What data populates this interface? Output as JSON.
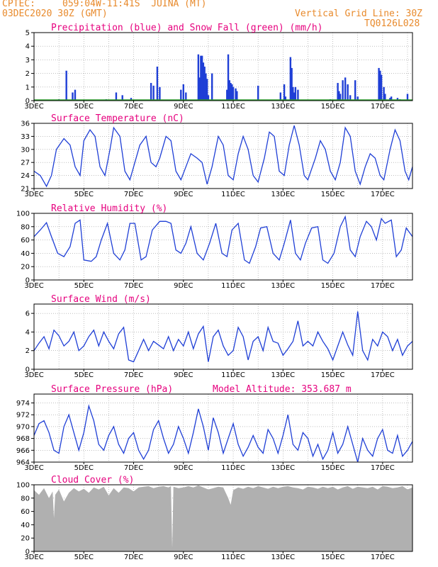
{
  "header": {
    "source": "CPTEC:",
    "location": "059:04W-11:41S  JUINA (MT)",
    "run": "03DEC2020 30Z (GMT)",
    "grid_note": "Vertical Grid Line: 30Z",
    "product_code": "TQ0126L028"
  },
  "colors": {
    "header": "#e88a2c",
    "title": "#e6007e",
    "series": "#1f3fd6",
    "snow": "#2ca02c",
    "cloud": "#b0b0b0"
  },
  "chart_data": [
    {
      "id": "precip",
      "type": "bar",
      "title": "Precipitation (blue) and Snow Fall (green) (mm/h)",
      "ylim": [
        0,
        5
      ],
      "yticks": [
        "0",
        "1",
        "2",
        "3",
        "4",
        "5"
      ],
      "x_labels": [
        "3DEC",
        "5DEC",
        "7DEC",
        "9DEC",
        "11DEC",
        "13DEC",
        "15DEC",
        "17DEC"
      ],
      "grid": true,
      "xrange_days": [
        3,
        18.2
      ],
      "bars": [
        [
          4.0,
          0.1
        ],
        [
          4.3,
          2.2
        ],
        [
          4.55,
          0.6
        ],
        [
          4.65,
          0.8
        ],
        [
          5.9,
          0.1
        ],
        [
          6.3,
          0.6
        ],
        [
          6.55,
          0.4
        ],
        [
          6.9,
          0.2
        ],
        [
          7.7,
          1.3
        ],
        [
          7.8,
          1.1
        ],
        [
          7.95,
          2.5
        ],
        [
          8.05,
          1.0
        ],
        [
          8.9,
          0.8
        ],
        [
          9.0,
          1.2
        ],
        [
          9.1,
          0.6
        ],
        [
          9.6,
          3.4
        ],
        [
          9.65,
          1.7
        ],
        [
          9.7,
          3.3
        ],
        [
          9.75,
          3.3
        ],
        [
          9.8,
          2.8
        ],
        [
          9.85,
          2.5
        ],
        [
          9.9,
          2.0
        ],
        [
          9.95,
          1.6
        ],
        [
          10.0,
          0.4
        ],
        [
          10.15,
          2.0
        ],
        [
          10.75,
          0.8
        ],
        [
          10.8,
          3.4
        ],
        [
          10.85,
          1.5
        ],
        [
          10.9,
          1.3
        ],
        [
          10.95,
          1.2
        ],
        [
          11.0,
          1.0
        ],
        [
          11.1,
          0.9
        ],
        [
          11.15,
          0.7
        ],
        [
          12.0,
          1.1
        ],
        [
          12.9,
          0.6
        ],
        [
          13.05,
          1.2
        ],
        [
          13.1,
          0.3
        ],
        [
          13.3,
          3.2
        ],
        [
          13.35,
          2.4
        ],
        [
          13.4,
          1.0
        ],
        [
          13.45,
          0.6
        ],
        [
          13.5,
          1.0
        ],
        [
          13.6,
          0.8
        ],
        [
          14.9,
          0.1
        ],
        [
          15.2,
          1.3
        ],
        [
          15.25,
          0.7
        ],
        [
          15.3,
          0.5
        ],
        [
          15.4,
          1.5
        ],
        [
          15.5,
          1.7
        ],
        [
          15.6,
          1.2
        ],
        [
          15.7,
          0.4
        ],
        [
          15.9,
          1.5
        ],
        [
          16.0,
          0.3
        ],
        [
          16.85,
          2.4
        ],
        [
          16.9,
          2.2
        ],
        [
          16.95,
          1.9
        ],
        [
          17.05,
          1.0
        ],
        [
          17.1,
          0.5
        ],
        [
          17.3,
          0.2
        ],
        [
          17.35,
          0.3
        ],
        [
          17.6,
          0.2
        ],
        [
          17.7,
          0.1
        ],
        [
          18.0,
          0.5
        ]
      ]
    },
    {
      "id": "temperature",
      "type": "line",
      "title": "Surface Temperature (nC)",
      "ylim": [
        21,
        36
      ],
      "yticks": [
        "21",
        "24",
        "27",
        "30",
        "33",
        "36"
      ],
      "x_labels": [
        "3DEC",
        "5DEC",
        "7DEC",
        "9DEC",
        "11DEC",
        "13DEC",
        "15DEC",
        "17DEC"
      ],
      "grid": true,
      "x": [
        3.0,
        3.25,
        3.5,
        3.7,
        3.9,
        4.2,
        4.45,
        4.65,
        4.85,
        5.0,
        5.25,
        5.45,
        5.65,
        5.85,
        6.05,
        6.2,
        6.45,
        6.65,
        6.85,
        7.05,
        7.25,
        7.5,
        7.7,
        7.9,
        8.05,
        8.3,
        8.5,
        8.7,
        8.9,
        9.1,
        9.3,
        9.55,
        9.75,
        9.95,
        10.15,
        10.4,
        10.6,
        10.8,
        11.0,
        11.2,
        11.4,
        11.6,
        11.8,
        12.0,
        12.25,
        12.45,
        12.65,
        12.85,
        13.05,
        13.25,
        13.45,
        13.65,
        13.85,
        14.0,
        14.3,
        14.5,
        14.7,
        14.9,
        15.1,
        15.3,
        15.5,
        15.7,
        15.9,
        16.1,
        16.3,
        16.5,
        16.7,
        16.9,
        17.05,
        17.3,
        17.5,
        17.7,
        17.9,
        18.05,
        18.2
      ],
      "y": [
        25,
        24,
        21.5,
        24,
        30,
        32.5,
        31,
        26,
        24,
        32,
        34.5,
        33,
        26,
        24,
        30,
        35,
        33,
        25,
        23,
        27,
        31,
        33,
        27,
        26,
        28,
        33,
        32,
        25,
        23,
        26,
        29,
        28,
        27,
        22,
        26,
        33,
        31,
        24,
        23,
        29,
        33,
        30,
        24,
        22.5,
        28,
        34,
        33,
        25,
        24,
        31,
        35.5,
        31,
        24,
        23,
        28,
        32,
        30,
        25,
        23,
        27,
        35,
        33,
        25,
        22,
        26,
        29,
        28,
        24,
        23,
        30,
        34.5,
        32,
        25,
        23,
        26
      ]
    },
    {
      "id": "humidity",
      "type": "line",
      "title": "Relative Humidity (%)",
      "ylim": [
        0,
        100
      ],
      "yticks": [
        "0",
        "20",
        "40",
        "60",
        "80",
        "100"
      ],
      "x_labels": [
        "3DEC",
        "5DEC",
        "7DEC",
        "9DEC",
        "11DEC",
        "13DEC",
        "15DEC",
        "17DEC"
      ],
      "grid": true,
      "x": [
        3.0,
        3.25,
        3.5,
        3.7,
        3.95,
        4.2,
        4.45,
        4.65,
        4.85,
        5.0,
        5.3,
        5.5,
        5.7,
        5.95,
        6.2,
        6.45,
        6.65,
        6.85,
        7.05,
        7.3,
        7.5,
        7.75,
        8.05,
        8.3,
        8.5,
        8.7,
        8.9,
        9.1,
        9.3,
        9.55,
        9.8,
        10.05,
        10.3,
        10.55,
        10.75,
        10.95,
        11.2,
        11.45,
        11.65,
        11.9,
        12.1,
        12.35,
        12.6,
        12.85,
        13.05,
        13.3,
        13.5,
        13.7,
        13.9,
        14.15,
        14.4,
        14.6,
        14.8,
        15.05,
        15.3,
        15.5,
        15.7,
        15.9,
        16.1,
        16.35,
        16.55,
        16.75,
        16.95,
        17.1,
        17.35,
        17.55,
        17.75,
        17.95,
        18.2
      ],
      "y": [
        65,
        75,
        86,
        65,
        40,
        35,
        50,
        85,
        90,
        30,
        28,
        35,
        60,
        85,
        40,
        30,
        45,
        85,
        85,
        30,
        35,
        75,
        88,
        88,
        85,
        45,
        40,
        55,
        80,
        40,
        30,
        55,
        85,
        40,
        35,
        75,
        85,
        30,
        25,
        50,
        78,
        80,
        40,
        30,
        55,
        90,
        40,
        30,
        55,
        78,
        80,
        30,
        25,
        40,
        80,
        95,
        45,
        35,
        65,
        88,
        80,
        60,
        92,
        85,
        90,
        35,
        45,
        78,
        65
      ]
    },
    {
      "id": "wind",
      "type": "line",
      "title": "Surface Wind (m/s)",
      "ylim": [
        0,
        7
      ],
      "yticks": [
        "0",
        "2",
        "4",
        "6"
      ],
      "x_labels": [
        "3DEC",
        "5DEC",
        "7DEC",
        "9DEC",
        "11DEC",
        "13DEC",
        "15DEC",
        "17DEC"
      ],
      "grid": true,
      "x": [
        3.0,
        3.2,
        3.4,
        3.6,
        3.8,
        4.0,
        4.2,
        4.4,
        4.6,
        4.8,
        5.0,
        5.2,
        5.4,
        5.6,
        5.8,
        6.0,
        6.2,
        6.4,
        6.6,
        6.8,
        7.0,
        7.2,
        7.4,
        7.6,
        7.8,
        8.0,
        8.2,
        8.4,
        8.6,
        8.8,
        9.0,
        9.2,
        9.4,
        9.6,
        9.8,
        10.0,
        10.2,
        10.4,
        10.6,
        10.8,
        11.0,
        11.2,
        11.4,
        11.6,
        11.8,
        12.0,
        12.2,
        12.4,
        12.6,
        12.8,
        13.0,
        13.2,
        13.4,
        13.6,
        13.8,
        14.0,
        14.2,
        14.4,
        14.6,
        14.8,
        15.0,
        15.2,
        15.4,
        15.6,
        15.8,
        16.0,
        16.2,
        16.4,
        16.6,
        16.8,
        17.0,
        17.2,
        17.4,
        17.6,
        17.8,
        18.0,
        18.2
      ],
      "y": [
        2.0,
        2.8,
        3.5,
        2.2,
        4.2,
        3.6,
        2.5,
        3.0,
        4.0,
        2.0,
        2.5,
        3.5,
        4.2,
        2.5,
        4.0,
        3.0,
        2.2,
        3.8,
        4.5,
        1.0,
        0.8,
        2.0,
        3.2,
        2.0,
        3.0,
        2.6,
        2.2,
        3.5,
        2.0,
        3.2,
        2.5,
        4.0,
        2.2,
        3.8,
        4.6,
        0.8,
        3.5,
        4.2,
        2.5,
        1.5,
        2.0,
        4.5,
        3.5,
        1.0,
        3.0,
        3.5,
        2.0,
        4.5,
        3.0,
        2.8,
        1.5,
        2.2,
        3.0,
        5.2,
        2.5,
        3.0,
        2.5,
        4.0,
        3.0,
        2.2,
        1.0,
        2.5,
        4.0,
        2.6,
        1.5,
        6.2,
        2.0,
        1.0,
        3.2,
        2.5,
        4.0,
        3.5,
        2.0,
        3.2,
        1.5,
        2.5,
        3.0
      ]
    },
    {
      "id": "pressure",
      "type": "line",
      "title": "Surface Pressure (hPa)",
      "annotation": "Model Altitude: 353.687 m",
      "ylim": [
        964,
        975.5
      ],
      "yticks": [
        "964",
        "966",
        "968",
        "970",
        "972",
        "974"
      ],
      "x_labels": [
        "3DEC",
        "5DEC",
        "7DEC",
        "9DEC",
        "11DEC",
        "13DEC",
        "15DEC",
        "17DEC"
      ],
      "grid": true,
      "x": [
        3.0,
        3.2,
        3.4,
        3.6,
        3.8,
        4.0,
        4.2,
        4.4,
        4.6,
        4.8,
        5.0,
        5.2,
        5.4,
        5.6,
        5.8,
        6.0,
        6.2,
        6.4,
        6.6,
        6.8,
        7.0,
        7.2,
        7.4,
        7.6,
        7.8,
        8.0,
        8.2,
        8.4,
        8.6,
        8.8,
        9.0,
        9.2,
        9.4,
        9.6,
        9.8,
        10.0,
        10.2,
        10.4,
        10.6,
        10.8,
        11.0,
        11.2,
        11.4,
        11.6,
        11.8,
        12.0,
        12.2,
        12.4,
        12.6,
        12.8,
        13.0,
        13.2,
        13.4,
        13.6,
        13.8,
        14.0,
        14.2,
        14.4,
        14.6,
        14.8,
        15.0,
        15.2,
        15.4,
        15.6,
        15.8,
        16.0,
        16.2,
        16.4,
        16.6,
        16.8,
        17.0,
        17.2,
        17.4,
        17.6,
        17.8,
        18.0,
        18.2
      ],
      "y": [
        968.5,
        970.5,
        971,
        969,
        966,
        965.5,
        970,
        972,
        969,
        966,
        969,
        973.5,
        971,
        967,
        966,
        968.5,
        970,
        967,
        965.5,
        968,
        969,
        966,
        964.5,
        966,
        969.5,
        971,
        968,
        965.5,
        967,
        970,
        968,
        965.5,
        969,
        973,
        970,
        966,
        971.5,
        969,
        965.5,
        968,
        970.5,
        967,
        965,
        966.5,
        968.5,
        966.5,
        965.5,
        969.5,
        968,
        965.5,
        968.5,
        972,
        967,
        966,
        969,
        968,
        965,
        967,
        964.5,
        966,
        969,
        965.5,
        967,
        970,
        967,
        964,
        968,
        966,
        965,
        968,
        969.5,
        966,
        965.5,
        968.5,
        965,
        966,
        967.5
      ]
    },
    {
      "id": "cloud",
      "type": "area",
      "title": "Cloud Cover (%)",
      "ylim": [
        0,
        100
      ],
      "yticks": [
        "0",
        "20",
        "40",
        "60",
        "80",
        "100"
      ],
      "x_labels": [
        "3DEC",
        "5DEC",
        "7DEC",
        "9DEC",
        "11DEC",
        "13DEC",
        "15DEC",
        "17DEC"
      ],
      "grid": true,
      "x": [
        3.0,
        3.2,
        3.4,
        3.6,
        3.75,
        3.8,
        3.85,
        4.0,
        4.2,
        4.4,
        4.6,
        4.8,
        5.0,
        5.2,
        5.4,
        5.6,
        5.8,
        6.0,
        6.2,
        6.4,
        6.6,
        6.8,
        7.0,
        7.2,
        7.4,
        7.6,
        7.8,
        8.0,
        8.2,
        8.4,
        8.5,
        8.55,
        8.6,
        8.8,
        9.0,
        9.2,
        9.4,
        9.6,
        9.8,
        10.0,
        10.2,
        10.4,
        10.6,
        10.8,
        10.9,
        11.0,
        11.2,
        11.4,
        11.6,
        11.8,
        12.0,
        12.2,
        12.4,
        12.6,
        12.8,
        13.0,
        13.2,
        13.4,
        13.6,
        13.8,
        14.0,
        14.2,
        14.4,
        14.6,
        14.8,
        15.0,
        15.2,
        15.4,
        15.6,
        15.8,
        16.0,
        16.2,
        16.4,
        16.6,
        16.8,
        17.0,
        17.2,
        17.4,
        17.6,
        17.8,
        18.0,
        18.2
      ],
      "y": [
        92,
        85,
        95,
        80,
        90,
        50,
        85,
        93,
        75,
        88,
        95,
        90,
        94,
        88,
        96,
        93,
        97,
        84,
        95,
        88,
        96,
        95,
        90,
        96,
        97,
        98,
        95,
        97,
        98,
        96,
        98,
        5,
        97,
        95,
        96,
        98,
        96,
        99,
        96,
        93,
        95,
        97,
        96,
        80,
        70,
        92,
        96,
        94,
        97,
        95,
        98,
        96,
        94,
        97,
        95,
        97,
        98,
        96,
        95,
        93,
        97,
        96,
        94,
        97,
        95,
        97,
        93,
        96,
        98,
        94,
        97,
        96,
        95,
        97,
        93,
        98,
        97,
        95,
        96,
        98,
        93,
        96
      ]
    }
  ]
}
